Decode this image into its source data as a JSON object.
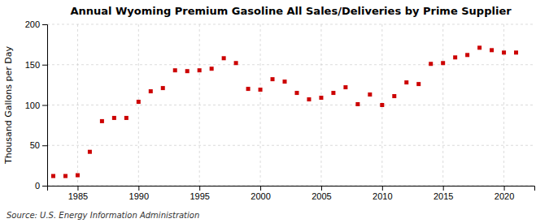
{
  "chart_data": {
    "type": "scatter",
    "title": "Annual Wyoming Premium Gasoline All Sales/Deliveries by Prime Supplier",
    "ylabel": "Thousand Gallons per Day",
    "annotation": "Source: U.S. Energy Information Administration",
    "x": [
      1983,
      1984,
      1985,
      1986,
      1987,
      1988,
      1989,
      1990,
      1991,
      1992,
      1993,
      1994,
      1995,
      1996,
      1997,
      1998,
      1999,
      2000,
      2001,
      2002,
      2003,
      2004,
      2005,
      2006,
      2007,
      2008,
      2009,
      2010,
      2011,
      2012,
      2013,
      2014,
      2015,
      2016,
      2017,
      2018,
      2019,
      2020,
      2021
    ],
    "values": [
      12,
      12,
      13,
      42,
      80,
      84,
      84,
      104,
      117,
      121,
      143,
      142,
      143,
      145,
      158,
      152,
      120,
      119,
      132,
      129,
      115,
      107,
      109,
      115,
      122,
      101,
      113,
      100,
      111,
      128,
      126,
      151,
      152,
      159,
      162,
      171,
      168,
      165,
      165
    ],
    "color": "#cc0000",
    "marker": "square",
    "xlim": [
      1982.5,
      2022.5
    ],
    "xticks": [
      1985,
      1990,
      1995,
      2000,
      2005,
      2010,
      2015,
      2020
    ],
    "ylim": [
      0,
      200
    ],
    "yticks": [
      0,
      50,
      100,
      150,
      200
    ],
    "grid": true
  }
}
